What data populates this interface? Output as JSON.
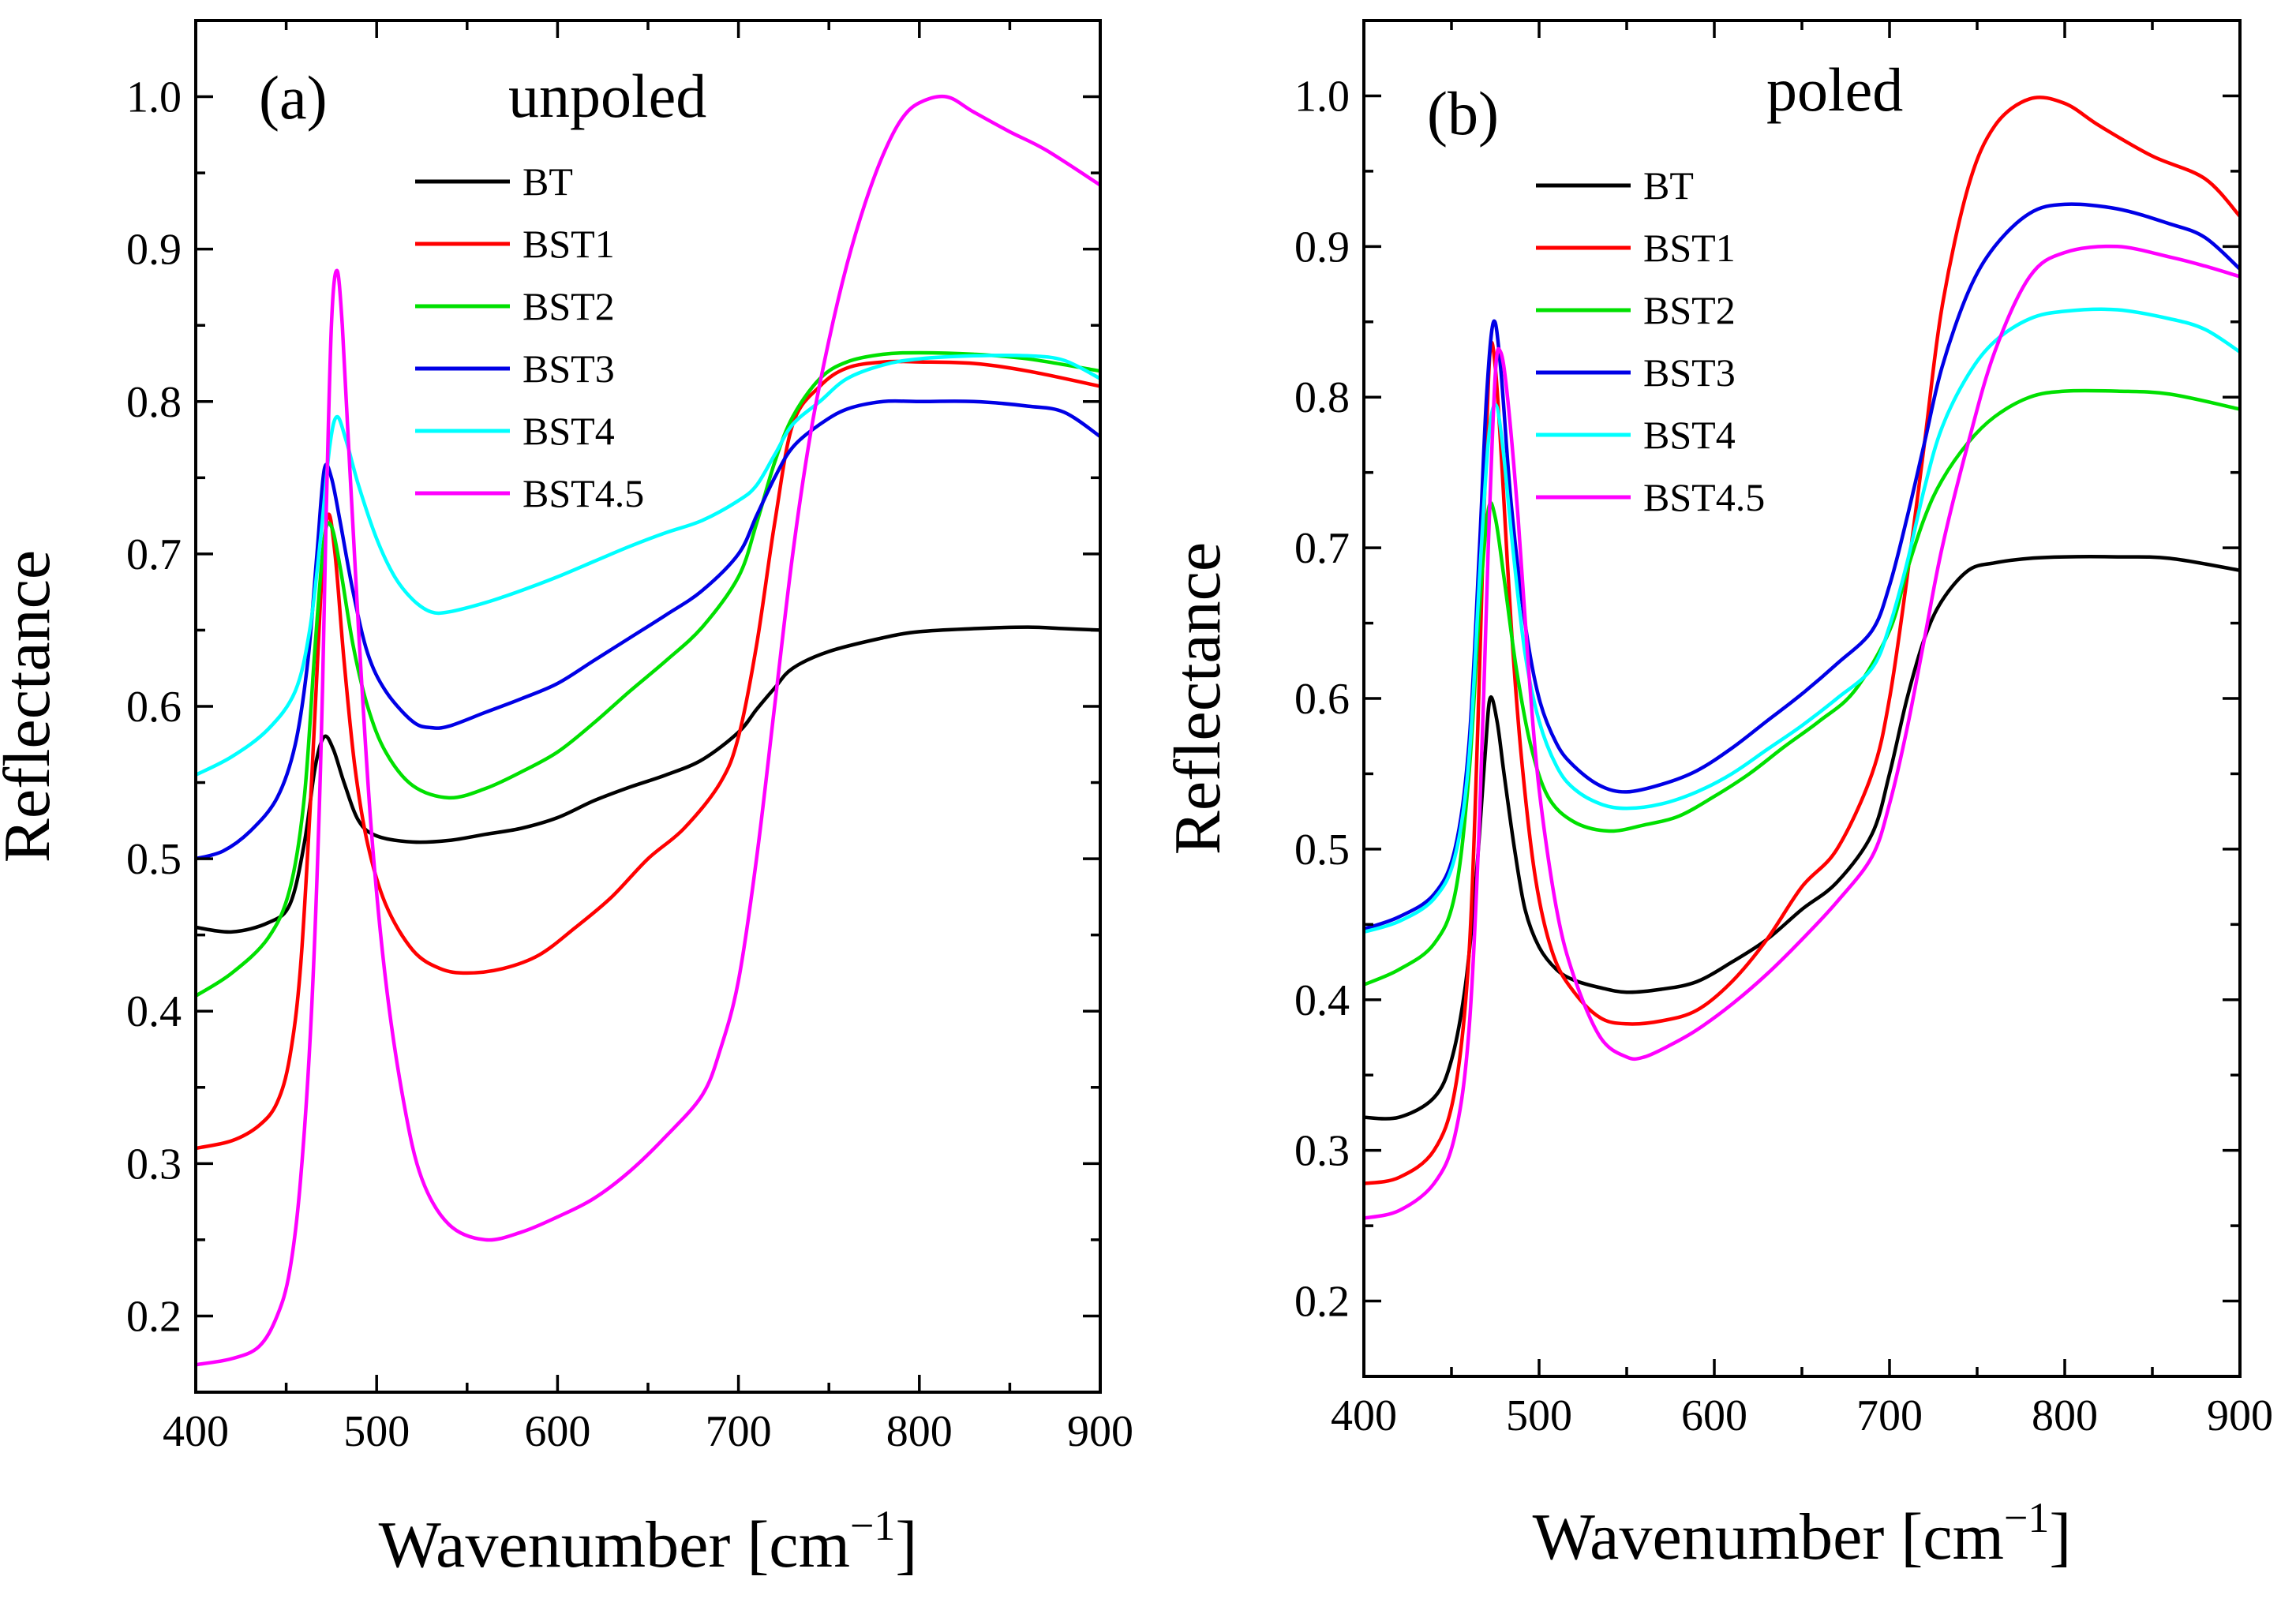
{
  "chart_data": [
    {
      "type": "line",
      "panel_label": "(a)",
      "title": "unpoled",
      "xlabel": "Wavenumber [cm",
      "xlabel_sup": "−1",
      "xlabel_close": "]",
      "ylabel": "Reflectance",
      "xlim": [
        400,
        900
      ],
      "ylim": [
        0.15,
        1.05
      ],
      "xticks": [
        400,
        500,
        600,
        700,
        800,
        900
      ],
      "yticks": [
        0.2,
        0.3,
        0.4,
        0.5,
        0.6,
        0.7,
        0.8,
        0.9,
        1.0
      ],
      "xtick_labels": [
        "400",
        "500",
        "600",
        "700",
        "800",
        "900"
      ],
      "ytick_labels": [
        "0.2",
        "0.3",
        "0.4",
        "0.5",
        "0.6",
        "0.7",
        "0.8",
        "0.9",
        "1.0"
      ],
      "legend_position": "top-left",
      "series": [
        {
          "name": "BT",
          "color": "#000000",
          "x": [
            400,
            420,
            440,
            452,
            460,
            466,
            471,
            476,
            482,
            490,
            500,
            520,
            540,
            560,
            580,
            600,
            620,
            640,
            660,
            680,
            700,
            710,
            720,
            730,
            750,
            780,
            800,
            830,
            860,
            880,
            900
          ],
          "y": [
            0.455,
            0.452,
            0.458,
            0.47,
            0.51,
            0.56,
            0.58,
            0.572,
            0.55,
            0.525,
            0.515,
            0.511,
            0.512,
            0.516,
            0.52,
            0.527,
            0.538,
            0.547,
            0.555,
            0.565,
            0.583,
            0.598,
            0.612,
            0.625,
            0.636,
            0.645,
            0.649,
            0.651,
            0.652,
            0.651,
            0.65
          ]
        },
        {
          "name": "BST1",
          "color": "#ff0000",
          "x": [
            400,
            420,
            435,
            445,
            452,
            458,
            464,
            469,
            473,
            477,
            482,
            488,
            495,
            505,
            520,
            535,
            550,
            570,
            590,
            610,
            630,
            650,
            670,
            690,
            700,
            710,
            720,
            730,
            745,
            760,
            780,
            800,
            830,
            860,
            900
          ],
          "y": [
            0.31,
            0.315,
            0.325,
            0.34,
            0.37,
            0.43,
            0.55,
            0.67,
            0.725,
            0.7,
            0.63,
            0.56,
            0.51,
            0.47,
            0.44,
            0.428,
            0.425,
            0.428,
            0.437,
            0.455,
            0.475,
            0.5,
            0.52,
            0.55,
            0.58,
            0.64,
            0.72,
            0.785,
            0.81,
            0.822,
            0.826,
            0.826,
            0.825,
            0.82,
            0.81
          ]
        },
        {
          "name": "BST2",
          "color": "#00e000",
          "x": [
            400,
            420,
            440,
            452,
            460,
            466,
            471,
            475,
            480,
            487,
            495,
            505,
            520,
            540,
            560,
            580,
            600,
            620,
            640,
            660,
            680,
            700,
            710,
            720,
            730,
            745,
            760,
            780,
            800,
            830,
            860,
            900
          ],
          "y": [
            0.41,
            0.425,
            0.448,
            0.48,
            0.54,
            0.64,
            0.71,
            0.718,
            0.69,
            0.64,
            0.6,
            0.57,
            0.548,
            0.54,
            0.546,
            0.557,
            0.57,
            0.589,
            0.61,
            0.63,
            0.652,
            0.685,
            0.72,
            0.76,
            0.79,
            0.815,
            0.826,
            0.831,
            0.832,
            0.831,
            0.828,
            0.82
          ]
        },
        {
          "name": "BST3",
          "color": "#0000e6",
          "x": [
            400,
            415,
            430,
            445,
            455,
            462,
            467,
            471,
            475,
            480,
            487,
            495,
            505,
            520,
            530,
            540,
            560,
            580,
            600,
            620,
            640,
            660,
            680,
            700,
            710,
            720,
            730,
            745,
            760,
            780,
            800,
            830,
            860,
            880,
            900
          ],
          "y": [
            0.5,
            0.505,
            0.518,
            0.54,
            0.575,
            0.63,
            0.7,
            0.755,
            0.75,
            0.72,
            0.675,
            0.635,
            0.61,
            0.59,
            0.586,
            0.587,
            0.596,
            0.605,
            0.615,
            0.63,
            0.645,
            0.66,
            0.676,
            0.7,
            0.725,
            0.75,
            0.77,
            0.785,
            0.795,
            0.8,
            0.8,
            0.8,
            0.797,
            0.793,
            0.777
          ]
        },
        {
          "name": "BST4",
          "color": "#00ffff",
          "x": [
            400,
            420,
            440,
            455,
            463,
            469,
            474,
            478,
            483,
            490,
            500,
            510,
            520,
            530,
            540,
            560,
            580,
            600,
            620,
            640,
            660,
            680,
            700,
            710,
            720,
            730,
            745,
            760,
            780,
            800,
            830,
            860,
            880,
            900
          ],
          "y": [
            0.555,
            0.567,
            0.585,
            0.61,
            0.65,
            0.71,
            0.77,
            0.79,
            0.775,
            0.745,
            0.71,
            0.685,
            0.67,
            0.662,
            0.662,
            0.668,
            0.676,
            0.685,
            0.695,
            0.705,
            0.714,
            0.722,
            0.735,
            0.745,
            0.765,
            0.785,
            0.8,
            0.815,
            0.824,
            0.828,
            0.83,
            0.83,
            0.827,
            0.815
          ]
        },
        {
          "name": "BST4.5",
          "color": "#ff00ff",
          "x": [
            400,
            420,
            435,
            445,
            452,
            458,
            464,
            469,
            472,
            475,
            478,
            481,
            485,
            490,
            497,
            505,
            515,
            525,
            540,
            560,
            580,
            600,
            620,
            640,
            660,
            680,
            690,
            700,
            710,
            720,
            730,
            740,
            750,
            760,
            770,
            780,
            790,
            800,
            815,
            830,
            850,
            870,
            900
          ],
          "y": [
            0.168,
            0.172,
            0.18,
            0.2,
            0.23,
            0.29,
            0.4,
            0.56,
            0.72,
            0.85,
            0.886,
            0.85,
            0.76,
            0.65,
            0.52,
            0.42,
            0.34,
            0.29,
            0.26,
            0.25,
            0.255,
            0.265,
            0.277,
            0.295,
            0.318,
            0.345,
            0.375,
            0.42,
            0.5,
            0.6,
            0.7,
            0.78,
            0.84,
            0.89,
            0.93,
            0.962,
            0.985,
            0.996,
            1.0,
            0.99,
            0.977,
            0.965,
            0.942
          ]
        }
      ]
    },
    {
      "type": "line",
      "panel_label": "(b)",
      "title": "poled",
      "xlabel": "Wavenumber [cm",
      "xlabel_sup": "−1",
      "xlabel_close": "]",
      "ylabel": "Reflectance",
      "xlim": [
        400,
        900
      ],
      "ylim": [
        0.15,
        1.05
      ],
      "xticks": [
        400,
        500,
        600,
        700,
        800,
        900
      ],
      "yticks": [
        0.2,
        0.3,
        0.4,
        0.5,
        0.6,
        0.7,
        0.8,
        0.9,
        1.0
      ],
      "xtick_labels": [
        "400",
        "500",
        "600",
        "700",
        "800",
        "900"
      ],
      "ytick_labels": [
        "0.2",
        "0.3",
        "0.4",
        "0.5",
        "0.6",
        "0.7",
        "0.8",
        "0.9",
        "1.0"
      ],
      "legend_position": "top-left",
      "series": [
        {
          "name": "BT",
          "color": "#000000",
          "x": [
            400,
            420,
            440,
            450,
            458,
            464,
            469,
            472,
            476,
            480,
            486,
            492,
            500,
            510,
            520,
            535,
            550,
            570,
            590,
            610,
            630,
            650,
            670,
            690,
            700,
            710,
            720,
            730,
            745,
            760,
            780,
            800,
            830,
            860,
            900
          ],
          "y": [
            0.322,
            0.322,
            0.335,
            0.36,
            0.41,
            0.48,
            0.56,
            0.6,
            0.585,
            0.55,
            0.5,
            0.46,
            0.435,
            0.42,
            0.413,
            0.408,
            0.405,
            0.407,
            0.412,
            0.425,
            0.44,
            0.46,
            0.478,
            0.51,
            0.55,
            0.6,
            0.64,
            0.665,
            0.685,
            0.69,
            0.693,
            0.694,
            0.694,
            0.693,
            0.685
          ]
        },
        {
          "name": "BST1",
          "color": "#ff0000",
          "x": [
            400,
            420,
            440,
            452,
            460,
            465,
            469,
            472,
            475,
            479,
            484,
            490,
            498,
            508,
            520,
            535,
            550,
            570,
            590,
            610,
            630,
            650,
            670,
            690,
            700,
            710,
            720,
            730,
            745,
            760,
            780,
            800,
            820,
            850,
            880,
            900
          ],
          "y": [
            0.278,
            0.282,
            0.3,
            0.34,
            0.43,
            0.58,
            0.74,
            0.83,
            0.82,
            0.75,
            0.65,
            0.56,
            0.48,
            0.43,
            0.405,
            0.388,
            0.384,
            0.386,
            0.393,
            0.412,
            0.44,
            0.475,
            0.5,
            0.55,
            0.6,
            0.68,
            0.77,
            0.86,
            0.94,
            0.98,
            0.998,
            0.995,
            0.98,
            0.96,
            0.945,
            0.92
          ]
        },
        {
          "name": "BST2",
          "color": "#00e000",
          "x": [
            400,
            420,
            440,
            452,
            460,
            466,
            471,
            475,
            480,
            487,
            495,
            505,
            520,
            540,
            560,
            580,
            600,
            620,
            640,
            660,
            680,
            700,
            710,
            720,
            730,
            745,
            760,
            780,
            800,
            830,
            860,
            900
          ],
          "y": [
            0.41,
            0.42,
            0.437,
            0.47,
            0.55,
            0.66,
            0.725,
            0.72,
            0.68,
            0.62,
            0.57,
            0.535,
            0.518,
            0.512,
            0.516,
            0.522,
            0.535,
            0.55,
            0.568,
            0.585,
            0.605,
            0.645,
            0.685,
            0.72,
            0.745,
            0.77,
            0.787,
            0.8,
            0.804,
            0.804,
            0.802,
            0.792
          ]
        },
        {
          "name": "BST3",
          "color": "#0000e6",
          "x": [
            400,
            420,
            440,
            452,
            460,
            466,
            470,
            474,
            478,
            484,
            492,
            500,
            510,
            520,
            535,
            550,
            570,
            590,
            610,
            630,
            650,
            670,
            690,
            700,
            710,
            720,
            730,
            745,
            760,
            780,
            800,
            830,
            860,
            880,
            900
          ],
          "y": [
            0.447,
            0.455,
            0.47,
            0.5,
            0.57,
            0.7,
            0.8,
            0.85,
            0.82,
            0.73,
            0.65,
            0.6,
            0.57,
            0.555,
            0.542,
            0.538,
            0.543,
            0.552,
            0.567,
            0.585,
            0.603,
            0.623,
            0.645,
            0.675,
            0.72,
            0.77,
            0.82,
            0.87,
            0.9,
            0.922,
            0.928,
            0.925,
            0.915,
            0.906,
            0.885
          ]
        },
        {
          "name": "BST4",
          "color": "#00ffff",
          "x": [
            400,
            420,
            440,
            452,
            460,
            466,
            471,
            475,
            479,
            485,
            492,
            500,
            510,
            520,
            535,
            550,
            570,
            590,
            610,
            630,
            650,
            670,
            690,
            700,
            710,
            720,
            730,
            745,
            760,
            780,
            800,
            830,
            860,
            880,
            900
          ],
          "y": [
            0.445,
            0.452,
            0.467,
            0.495,
            0.56,
            0.68,
            0.77,
            0.795,
            0.77,
            0.7,
            0.63,
            0.585,
            0.555,
            0.54,
            0.53,
            0.527,
            0.53,
            0.538,
            0.55,
            0.566,
            0.582,
            0.6,
            0.62,
            0.648,
            0.69,
            0.74,
            0.78,
            0.815,
            0.837,
            0.852,
            0.857,
            0.858,
            0.852,
            0.845,
            0.83
          ]
        },
        {
          "name": "BST4.5",
          "color": "#ff00ff",
          "x": [
            400,
            420,
            440,
            452,
            460,
            466,
            471,
            475,
            478,
            482,
            488,
            494,
            500,
            510,
            520,
            535,
            550,
            560,
            575,
            590,
            610,
            630,
            650,
            670,
            690,
            700,
            710,
            720,
            730,
            745,
            760,
            780,
            800,
            830,
            860,
            880,
            900
          ],
          "y": [
            0.255,
            0.26,
            0.278,
            0.31,
            0.38,
            0.52,
            0.7,
            0.815,
            0.83,
            0.8,
            0.72,
            0.62,
            0.54,
            0.46,
            0.415,
            0.375,
            0.362,
            0.362,
            0.37,
            0.38,
            0.397,
            0.417,
            0.44,
            0.465,
            0.495,
            0.53,
            0.58,
            0.64,
            0.7,
            0.77,
            0.83,
            0.88,
            0.896,
            0.9,
            0.893,
            0.887,
            0.88
          ]
        }
      ]
    }
  ]
}
